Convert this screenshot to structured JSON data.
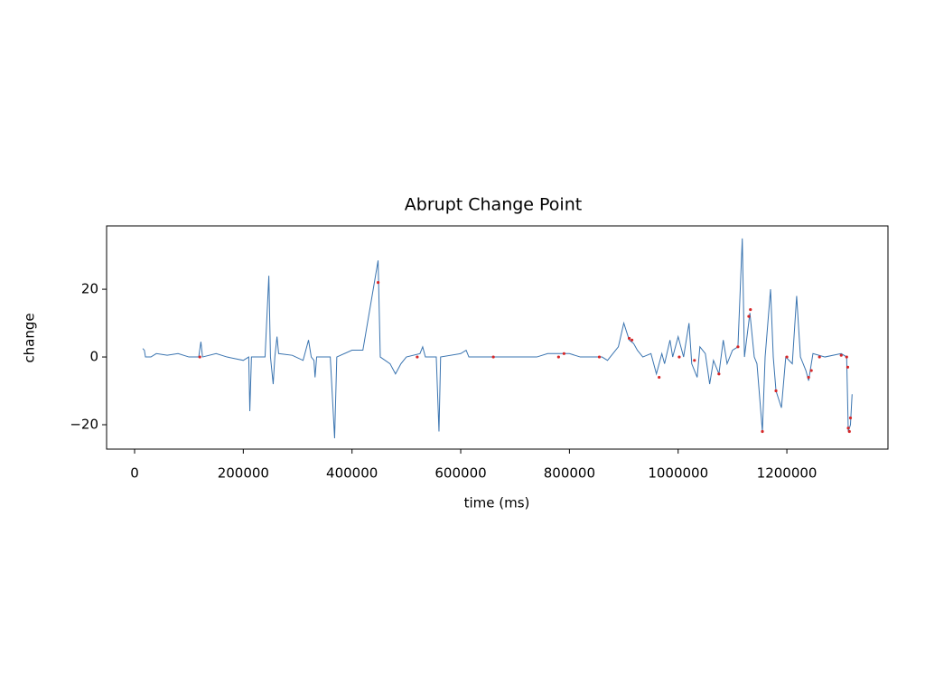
{
  "chart_data": {
    "type": "line",
    "title": "Abrupt Change Point",
    "xlabel": "time (ms)",
    "ylabel": "change",
    "xlim": [
      -51500,
      1386000
    ],
    "ylim": [
      -27.2,
      38.7
    ],
    "xticks": [
      0,
      200000,
      400000,
      600000,
      800000,
      1000000,
      1200000
    ],
    "yticks": [
      {
        "value": -20,
        "label": "−20"
      },
      0,
      20
    ],
    "series": [
      {
        "type": "line",
        "color": "#3a74b0",
        "x": [
          15000,
          18000,
          20000,
          30000,
          40000,
          60000,
          80000,
          100000,
          118000,
          122000,
          125000,
          150000,
          170000,
          200000,
          210000,
          212000,
          215000,
          240000,
          247000,
          250000,
          255000,
          258000,
          262000,
          265000,
          290000,
          310000,
          320000,
          325000,
          330000,
          332000,
          335000,
          360000,
          368000,
          372000,
          400000,
          420000,
          448000,
          452000,
          470000,
          480000,
          490000,
          500000,
          525000,
          530000,
          535000,
          555000,
          560000,
          563000,
          600000,
          610000,
          615000,
          650000,
          700000,
          740000,
          760000,
          800000,
          820000,
          860000,
          870000,
          880000,
          890000,
          900000,
          910000,
          918000,
          925000,
          935000,
          950000,
          960000,
          970000,
          975000,
          985000,
          990000,
          1000000,
          1010000,
          1020000,
          1025000,
          1035000,
          1040000,
          1050000,
          1058000,
          1065000,
          1075000,
          1083000,
          1090000,
          1100000,
          1110000,
          1118000,
          1122000,
          1132000,
          1140000,
          1145000,
          1155000,
          1160000,
          1170000,
          1175000,
          1180000,
          1190000,
          1198000,
          1210000,
          1218000,
          1225000,
          1235000,
          1240000,
          1248000,
          1270000,
          1300000,
          1310000,
          1313000,
          1317000,
          1320000
        ],
        "values": [
          2.5,
          2,
          0,
          0,
          1,
          0.5,
          1,
          0,
          0,
          4.5,
          0,
          1,
          0,
          -1,
          0,
          -16,
          0,
          0,
          24,
          0,
          -8,
          0,
          6,
          1,
          0.5,
          -1,
          5,
          0,
          -1,
          -6,
          0,
          0,
          -24,
          0,
          2,
          2,
          28.5,
          0,
          -2,
          -5,
          -2,
          0,
          1,
          3,
          0,
          0,
          -22,
          0,
          1,
          2,
          0,
          0,
          0,
          0,
          1,
          1,
          0,
          0,
          -1,
          1,
          3,
          10,
          5,
          4,
          2,
          0,
          1,
          -5,
          1,
          -2,
          5,
          0,
          6,
          0,
          10,
          -2,
          -6,
          3,
          1,
          -8,
          -1,
          -5,
          5,
          -2,
          2,
          3,
          35,
          0,
          13,
          0,
          -2,
          -22,
          0,
          20,
          0,
          -10,
          -15,
          0,
          -2,
          18,
          0,
          -4,
          -7,
          1,
          0,
          1,
          0,
          -22,
          -20,
          -11
        ]
      },
      {
        "type": "scatter",
        "color": "#d62728",
        "x": [
          120000,
          448000,
          520000,
          660000,
          780000,
          790000,
          855000,
          910000,
          915000,
          965000,
          1002000,
          1030000,
          1075000,
          1110000,
          1130000,
          1133000,
          1155000,
          1180000,
          1200000,
          1240000,
          1245000,
          1260000,
          1300000,
          1310000,
          1312000,
          1313000,
          1315000,
          1317000
        ],
        "values": [
          0,
          22,
          0,
          0,
          0,
          1,
          0,
          5.5,
          5,
          -6,
          0,
          -1,
          -5,
          3,
          12,
          14,
          -22,
          -10,
          0,
          -6,
          -4,
          0,
          0.5,
          0,
          -3,
          -21,
          -22,
          -18
        ]
      }
    ]
  }
}
